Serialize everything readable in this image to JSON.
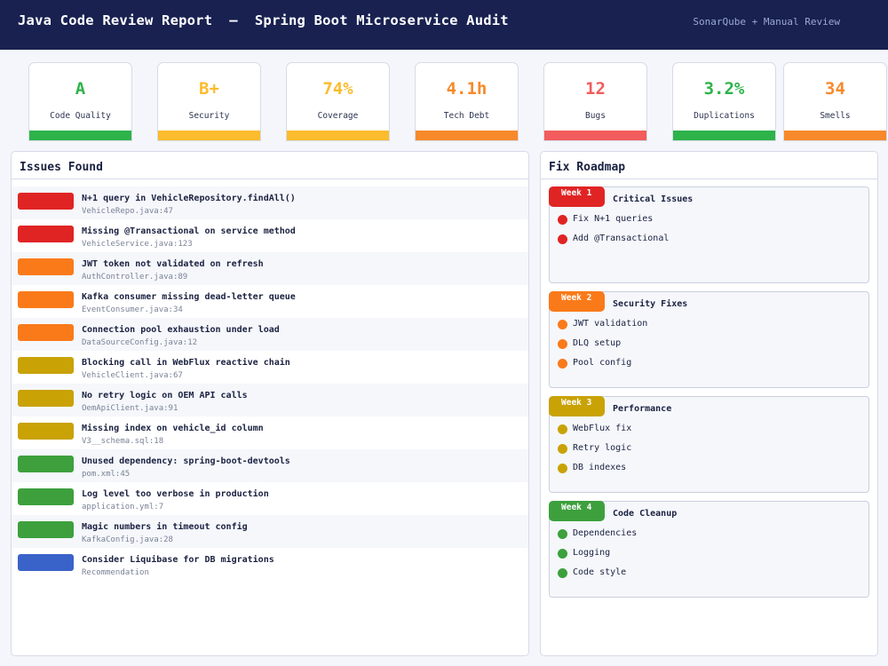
{
  "header": {
    "title": "Java Code Review Report  —  Spring Boot Microservice Audit",
    "subtitle": "SonarQube + Manual Review"
  },
  "metrics": [
    {
      "value": "A",
      "label": "Code Quality",
      "color": "#2db34a"
    },
    {
      "value": "B+",
      "label": "Security",
      "color": "#fbbc2d"
    },
    {
      "value": "74%",
      "label": "Coverage",
      "color": "#fbbc2d"
    },
    {
      "value": "4.1h",
      "label": "Tech Debt",
      "color": "#f7892b"
    },
    {
      "value": "12",
      "label": "Bugs",
      "color": "#f25c5c"
    },
    {
      "value": "3.2%",
      "label": "Duplications",
      "color": "#2db34a"
    },
    {
      "value": "34",
      "label": "Smells",
      "color": "#f7892b"
    }
  ],
  "issues": {
    "title": "Issues Found",
    "items": [
      {
        "text": "N+1 query in VehicleRepository.findAll()",
        "location": "VehicleRepo.java:47",
        "severity": "critical",
        "color": "#e02424"
      },
      {
        "text": "Missing @Transactional on service method",
        "location": "VehicleService.java:123",
        "severity": "critical",
        "color": "#e02424"
      },
      {
        "text": "JWT token not validated on refresh",
        "location": "AuthController.java:89",
        "severity": "major",
        "color": "#fa7a1a"
      },
      {
        "text": "Kafka consumer missing dead-letter queue",
        "location": "EventConsumer.java:34",
        "severity": "major",
        "color": "#fa7a1a"
      },
      {
        "text": "Connection pool exhaustion under load",
        "location": "DataSourceConfig.java:12",
        "severity": "major",
        "color": "#fa7a1a"
      },
      {
        "text": "Blocking call in WebFlux reactive chain",
        "location": "VehicleClient.java:67",
        "severity": "medium",
        "color": "#c9a206"
      },
      {
        "text": "No retry logic on OEM API calls",
        "location": "OemApiClient.java:91",
        "severity": "medium",
        "color": "#c9a206"
      },
      {
        "text": "Missing index on vehicle_id column",
        "location": "V3__schema.sql:18",
        "severity": "medium",
        "color": "#c9a206"
      },
      {
        "text": "Unused dependency: spring-boot-devtools",
        "location": "pom.xml:45",
        "severity": "minor",
        "color": "#3da03d"
      },
      {
        "text": "Log level too verbose in production",
        "location": "application.yml:7",
        "severity": "minor",
        "color": "#3da03d"
      },
      {
        "text": "Magic numbers in timeout config",
        "location": "KafkaConfig.java:28",
        "severity": "minor",
        "color": "#3da03d"
      },
      {
        "text": "Consider Liquibase for DB migrations",
        "location": "Recommendation",
        "severity": "info",
        "color": "#3a63c9"
      }
    ]
  },
  "roadmap": {
    "title": "Fix Roadmap",
    "weeks": [
      {
        "badge": "Week 1",
        "name": "Critical Issues",
        "color": "#e02424",
        "items": [
          "Fix N+1 queries",
          "Add @Transactional"
        ]
      },
      {
        "badge": "Week 2",
        "name": "Security Fixes",
        "color": "#fa7a1a",
        "items": [
          "JWT validation",
          "DLQ setup",
          "Pool config"
        ]
      },
      {
        "badge": "Week 3",
        "name": "Performance",
        "color": "#c9a206",
        "items": [
          "WebFlux fix",
          "Retry logic",
          "DB indexes"
        ]
      },
      {
        "badge": "Week 4",
        "name": "Code Cleanup",
        "color": "#3da03d",
        "items": [
          "Dependencies",
          "Logging",
          "Code style"
        ]
      }
    ]
  }
}
